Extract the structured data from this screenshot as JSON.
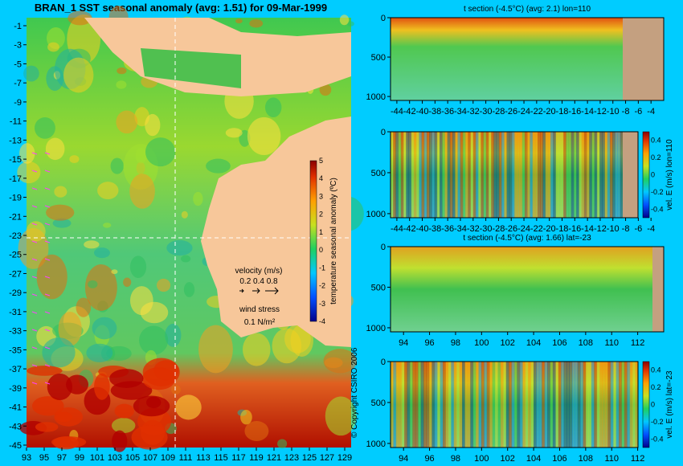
{
  "colors": {
    "bg": "#00ccff",
    "land": "#f7c79a",
    "land_section": "#c4a080",
    "guide": "#ffffff"
  },
  "map": {
    "title": "BRAN_1  SST seasonal anomaly (avg: 1.51) for 09-Mar-1999",
    "lat_ticks": [
      "-1",
      "-3",
      "-5",
      "-7",
      "-9",
      "-11",
      "-13",
      "-15",
      "-17",
      "-19",
      "-21",
      "-23",
      "-25",
      "-27",
      "-29",
      "-31",
      "-33",
      "-35",
      "-37",
      "-39",
      "-41",
      "-43",
      "-45"
    ],
    "lon_ticks": [
      "93",
      "95",
      "97",
      "99",
      "101",
      "103",
      "105",
      "107",
      "109",
      "111",
      "113",
      "115",
      "117",
      "119",
      "121",
      "123",
      "125",
      "127",
      "129"
    ],
    "lon_range": [
      93,
      130
    ],
    "lat_range": [
      -45,
      0
    ],
    "section_lon": 110,
    "section_lat": -23,
    "colorbar": {
      "label": "temperature seasonal anomaly (ºC)",
      "range": [
        -4,
        5
      ],
      "ticks": [
        "5",
        "4",
        "3",
        "2",
        "1",
        "0",
        "-1",
        "-2",
        "-3",
        "-4"
      ]
    },
    "legend": {
      "velocity_title": "velocity (m/s)",
      "velocity_values": "0.2 0.4 0.8",
      "wind_title": "wind stress",
      "wind_value": "0.1 N/m²"
    },
    "copyright": "© Copyright CSIRO 2006"
  },
  "chart_data": [
    {
      "type": "heatmap",
      "panel": "t-section-lon",
      "title": "t section (-4.5°C) (avg: 2.1) lon=110",
      "x_ticks": [
        "-44",
        "-42",
        "-40",
        "-38",
        "-36",
        "-34",
        "-32",
        "-30",
        "-28",
        "-26",
        "-24",
        "-22",
        "-20",
        "-18",
        "-16",
        "-14",
        "-12",
        "-10",
        "-8",
        "-6",
        "-4"
      ],
      "y_ticks": [
        "0",
        "500",
        "1000"
      ],
      "xlim": [
        -45,
        -2
      ],
      "ylim": [
        1050,
        0
      ]
    },
    {
      "type": "heatmap",
      "panel": "vel-section-lon",
      "title": "",
      "x_ticks": [
        "-44",
        "-42",
        "-40",
        "-38",
        "-36",
        "-34",
        "-32",
        "-30",
        "-28",
        "-26",
        "-24",
        "-22",
        "-20",
        "-18",
        "-16",
        "-14",
        "-12",
        "-10",
        "-8",
        "-6",
        "-4"
      ],
      "y_ticks": [
        "0",
        "500",
        "1000"
      ],
      "xlim": [
        -45,
        -2
      ],
      "ylim": [
        1050,
        0
      ],
      "colorbar": {
        "label": "vel. E (m/s) lon=110",
        "ticks": [
          "0.4",
          "0.2",
          "0",
          "-0.2",
          "-0.4"
        ],
        "range": [
          -0.5,
          0.5
        ]
      }
    },
    {
      "type": "heatmap",
      "panel": "t-section-lat",
      "title": "t section (-4.5°C) (avg: 1.66) lat=-23",
      "x_ticks": [
        "94",
        "96",
        "98",
        "100",
        "102",
        "104",
        "106",
        "108",
        "110",
        "112"
      ],
      "y_ticks": [
        "0",
        "500",
        "1000"
      ],
      "xlim": [
        93,
        114
      ],
      "ylim": [
        1050,
        0
      ]
    },
    {
      "type": "heatmap",
      "panel": "vel-section-lat",
      "title": "",
      "x_ticks": [
        "94",
        "96",
        "98",
        "100",
        "102",
        "104",
        "106",
        "108",
        "110",
        "112"
      ],
      "y_ticks": [
        "0",
        "500",
        "1000"
      ],
      "xlim": [
        93,
        114
      ],
      "ylim": [
        1050,
        0
      ],
      "colorbar": {
        "label": "vel. E (m/s) lat=-23",
        "ticks": [
          "0.4",
          "0.2",
          "0",
          "-0.2",
          "-0.4"
        ],
        "range": [
          -0.5,
          0.5
        ]
      }
    }
  ]
}
